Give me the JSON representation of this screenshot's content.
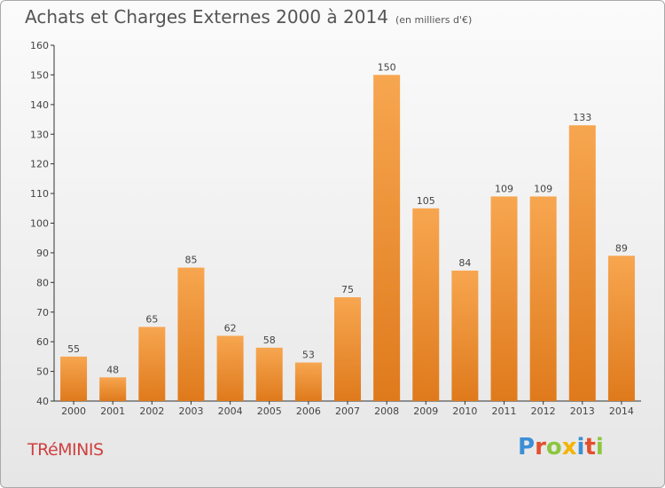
{
  "header": {
    "title": "Achats et Charges Externes 2000 à 2014",
    "subtitle": "(en milliers d'€)"
  },
  "footer": {
    "commune": "TRéMINIS",
    "logo": [
      "P",
      "r",
      "o",
      "x",
      "i",
      "t",
      "i"
    ]
  },
  "colors": {
    "bar_light": "#f7a650",
    "bar_dark": "#df7a1c",
    "logo_letters": [
      "#3b8fd6",
      "#e2502c",
      "#8cc63f",
      "#f4b400",
      "#3b8fd6",
      "#e2502c",
      "#8cc63f"
    ]
  },
  "chart_data": {
    "type": "bar",
    "title": "Achats et Charges Externes 2000 à 2014",
    "categories": [
      "2000",
      "2001",
      "2002",
      "2003",
      "2004",
      "2005",
      "2006",
      "2007",
      "2008",
      "2009",
      "2010",
      "2011",
      "2012",
      "2013",
      "2014"
    ],
    "values": [
      55,
      48,
      65,
      85,
      62,
      58,
      53,
      75,
      150,
      105,
      84,
      109,
      109,
      133,
      89
    ],
    "ylim": [
      40,
      160
    ],
    "yticks": [
      40,
      50,
      60,
      70,
      80,
      90,
      100,
      110,
      120,
      130,
      140,
      150,
      160
    ],
    "grid": false,
    "legend": "none"
  }
}
